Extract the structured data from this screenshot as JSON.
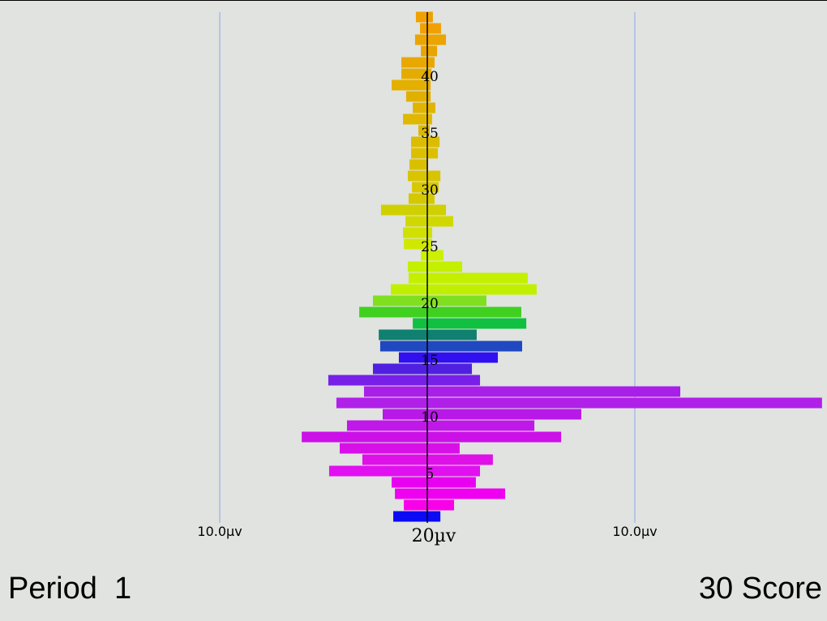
{
  "chart_data": {
    "type": "butterfly",
    "rows": [
      1,
      2,
      3,
      4,
      5,
      6,
      7,
      8,
      9,
      10,
      11,
      12,
      13,
      14,
      15,
      16,
      17,
      18,
      19,
      20,
      21,
      22,
      23,
      24,
      25,
      26,
      27,
      28,
      29,
      30,
      31,
      32,
      33,
      34,
      35,
      36,
      37,
      38,
      39,
      40,
      41,
      42,
      43,
      44,
      45
    ],
    "left_values": [
      1.64,
      1.13,
      1.56,
      1.72,
      4.73,
      3.13,
      4.22,
      6.05,
      3.87,
      2.15,
      4.38,
      3.05,
      4.77,
      2.62,
      1.37,
      2.27,
      2.34,
      0.7,
      3.28,
      2.62,
      1.76,
      0.9,
      0.94,
      0.31,
      1.13,
      1.17,
      1.05,
      2.23,
      0.9,
      0.74,
      0.94,
      0.86,
      0.78,
      0.78,
      0.43,
      1.17,
      0.7,
      1.02,
      1.72,
      1.25,
      1.25,
      0.31,
      0.59,
      0.35,
      0.55
    ],
    "right_values": [
      0.63,
      1.29,
      3.75,
      2.34,
      2.54,
      3.16,
      1.56,
      6.45,
      5.16,
      7.42,
      19.02,
      12.19,
      2.54,
      2.15,
      3.4,
      4.57,
      2.38,
      4.77,
      4.53,
      2.85,
      5.27,
      4.84,
      1.68,
      0.78,
      0.23,
      0.23,
      1.25,
      0.9,
      0.35,
      0.55,
      0.63,
      0.04,
      0.51,
      0.59,
      0.12,
      0.23,
      0.39,
      0.16,
      0.16,
      0.2,
      0.35,
      0.47,
      0.9,
      0.66,
      0.27
    ],
    "colors": [
      "#0a0af5",
      "#f800e8",
      "#f000f0",
      "#e800f0",
      "#e010f0",
      "#e010e8",
      "#d810e8",
      "#cc10e8",
      "#c018e8",
      "#b818e8",
      "#b020e8",
      "#a820e8",
      "#7820e8",
      "#5020e0",
      "#3010f0",
      "#2048c0",
      "#108070",
      "#10c040",
      "#40d020",
      "#80e020",
      "#c0f000",
      "#c4f000",
      "#c4f000",
      "#ccf000",
      "#d0e800",
      "#d0e000",
      "#d0d800",
      "#d0d000",
      "#d4c800",
      "#d8c800",
      "#d8c400",
      "#d8c000",
      "#dcc000",
      "#dcbc00",
      "#dcb800",
      "#e0b800",
      "#e0b400",
      "#e0b000",
      "#e4b000",
      "#e4ac00",
      "#e8a800",
      "#e8a400",
      "#eca400",
      "#f0a000",
      "#f0a000"
    ],
    "ylim": [
      0,
      46
    ],
    "yticks": [
      5,
      10,
      15,
      20,
      25,
      30,
      35,
      40
    ],
    "xlim": [
      -20.59,
      19.26
    ],
    "left_ticks": [
      {
        "value": 10,
        "label": "10.0µv"
      }
    ],
    "right_ticks": [
      {
        "value": 10,
        "label": "10.0µv"
      }
    ],
    "center_label": "20µv",
    "grid": true,
    "grid_color": "#8fa6e8"
  },
  "period_label": "Period  1",
  "score_label": "30 Score"
}
